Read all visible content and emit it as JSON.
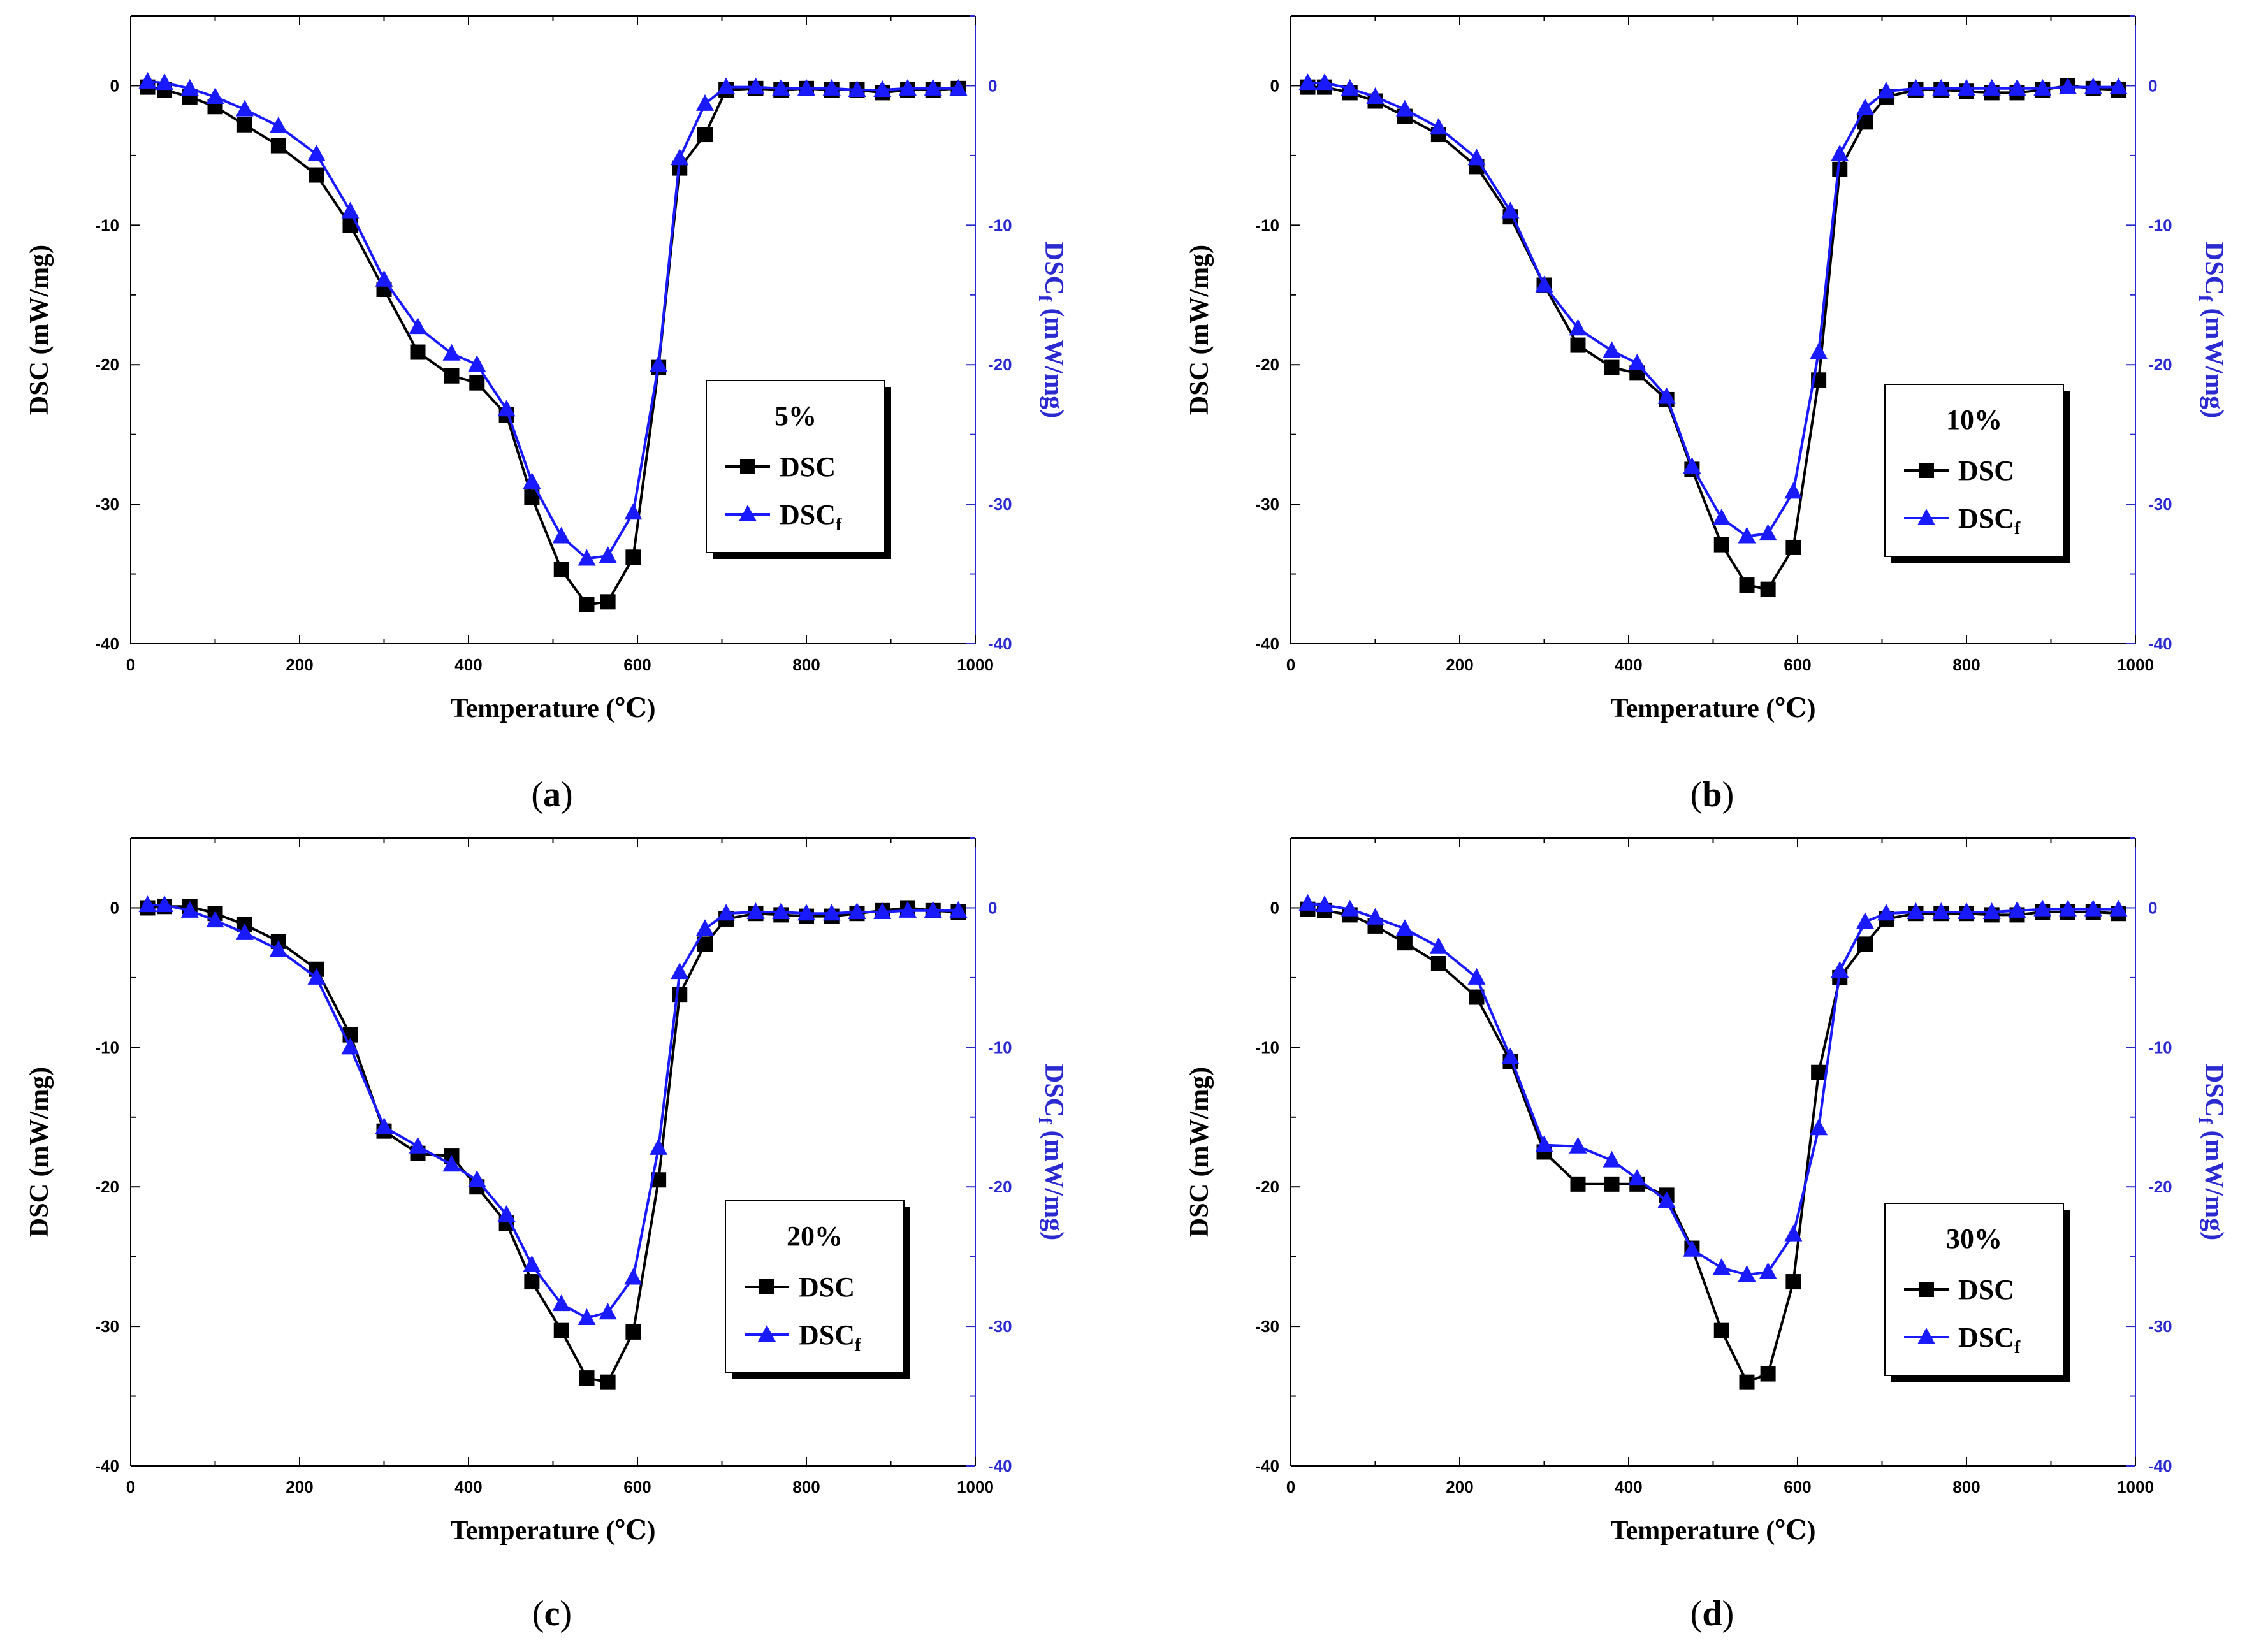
{
  "figure": {
    "panels": [
      "a",
      "b",
      "c",
      "d"
    ]
  },
  "colors": {
    "dsc": "#000000",
    "dscf": "#1a1aff",
    "axis_right": "#2a2ad0"
  },
  "chart_data": [
    {
      "type": "line",
      "panel": "a",
      "caption": {
        "open": "(",
        "letter": "a",
        "close": ")"
      },
      "legend_title": "5%",
      "legend_dsc": "DSC",
      "legend_dscf_main": "DSC",
      "legend_dscf_sub": "f",
      "xlabel": "Temperature (℃)",
      "ylabel": "DSC (mW/mg)",
      "ylabel_right_main": "DSC",
      "ylabel_right_sub": "f",
      "ylabel_right_rest": " (mW/mg)",
      "xlim": [
        0,
        1000
      ],
      "ylim": [
        -40,
        5
      ],
      "xticks": [
        "0",
        "200",
        "400",
        "600",
        "800",
        "1000"
      ],
      "yticks": [
        "0",
        "-10",
        "-20",
        "-30",
        "-40"
      ],
      "series": [
        {
          "name": "DSC",
          "marker": "square",
          "x": [
            20,
            40,
            70,
            100,
            135,
            175,
            220,
            260,
            300,
            340,
            380,
            410,
            445,
            475,
            510,
            540,
            565,
            595,
            625,
            650,
            680,
            705,
            740,
            770,
            800,
            830,
            860,
            890,
            920,
            950,
            980
          ],
          "y": [
            -0.1,
            -0.3,
            -0.8,
            -1.5,
            -2.8,
            -4.3,
            -6.4,
            -10.0,
            -14.6,
            -19.1,
            -20.8,
            -21.3,
            -23.6,
            -29.5,
            -34.7,
            -37.2,
            -37.0,
            -33.8,
            -20.2,
            -5.9,
            -3.5,
            -0.3,
            -0.2,
            -0.3,
            -0.2,
            -0.3,
            -0.3,
            -0.5,
            -0.3,
            -0.3,
            -0.2
          ]
        },
        {
          "name": "DSCf",
          "marker": "triangle",
          "x": [
            20,
            40,
            70,
            100,
            135,
            175,
            220,
            260,
            300,
            340,
            380,
            410,
            445,
            475,
            510,
            540,
            565,
            595,
            625,
            650,
            680,
            705,
            740,
            770,
            800,
            830,
            860,
            890,
            920,
            950,
            980
          ],
          "y": [
            0.3,
            0.2,
            -0.2,
            -0.8,
            -1.7,
            -2.9,
            -4.9,
            -9.0,
            -13.9,
            -17.3,
            -19.2,
            -20.0,
            -23.2,
            -28.4,
            -32.3,
            -33.9,
            -33.7,
            -30.6,
            -20.0,
            -5.2,
            -1.3,
            -0.1,
            -0.1,
            -0.2,
            -0.2,
            -0.2,
            -0.3,
            -0.3,
            -0.2,
            -0.2,
            -0.2
          ]
        }
      ]
    },
    {
      "type": "line",
      "panel": "b",
      "caption": {
        "open": "(",
        "letter": "b",
        "close": ")"
      },
      "legend_title": "10%",
      "legend_dsc": "DSC",
      "legend_dscf_main": "DSC",
      "legend_dscf_sub": "f",
      "xlabel": "Temperature (℃)",
      "ylabel": "DSC (mW/mg)",
      "ylabel_right_main": "DSC",
      "ylabel_right_sub": "f",
      "ylabel_right_rest": " (mW/mg)",
      "xlim": [
        0,
        1000
      ],
      "ylim": [
        -40,
        5
      ],
      "xticks": [
        "0",
        "200",
        "400",
        "600",
        "800",
        "1000"
      ],
      "yticks": [
        "0",
        "-10",
        "-20",
        "-30",
        "-40"
      ],
      "series": [
        {
          "name": "DSC",
          "marker": "square",
          "x": [
            20,
            40,
            70,
            100,
            135,
            175,
            220,
            260,
            300,
            340,
            380,
            410,
            445,
            475,
            510,
            540,
            565,
            595,
            625,
            650,
            680,
            705,
            740,
            770,
            800,
            830,
            860,
            890,
            920,
            950,
            980
          ],
          "y": [
            -0.1,
            -0.1,
            -0.5,
            -1.1,
            -2.2,
            -3.5,
            -5.8,
            -9.4,
            -14.3,
            -18.6,
            -20.2,
            -20.6,
            -22.5,
            -27.5,
            -32.9,
            -35.8,
            -36.1,
            -33.1,
            -21.1,
            -6.0,
            -2.6,
            -0.8,
            -0.3,
            -0.3,
            -0.4,
            -0.5,
            -0.5,
            -0.3,
            0.0,
            -0.2,
            -0.3
          ]
        },
        {
          "name": "DSCf",
          "marker": "triangle",
          "x": [
            20,
            40,
            70,
            100,
            135,
            175,
            220,
            260,
            300,
            340,
            380,
            410,
            445,
            475,
            510,
            540,
            565,
            595,
            625,
            650,
            680,
            705,
            740,
            770,
            800,
            830,
            860,
            890,
            920,
            950,
            980
          ],
          "y": [
            0.2,
            0.2,
            -0.2,
            -0.8,
            -1.7,
            -3.0,
            -5.2,
            -9.0,
            -14.3,
            -17.4,
            -19.0,
            -19.9,
            -22.3,
            -27.3,
            -31.0,
            -32.3,
            -32.1,
            -29.1,
            -19.1,
            -4.9,
            -1.6,
            -0.4,
            -0.2,
            -0.2,
            -0.2,
            -0.2,
            -0.2,
            -0.2,
            -0.1,
            -0.1,
            -0.1
          ]
        }
      ]
    },
    {
      "type": "line",
      "panel": "c",
      "caption": {
        "open": "(",
        "letter": "c",
        "close": ")"
      },
      "legend_title": "20%",
      "legend_dsc": "DSC",
      "legend_dscf_main": "DSC",
      "legend_dscf_sub": "f",
      "xlabel": "Temperature (℃)",
      "ylabel": "DSC (mW/mg)",
      "ylabel_right_main": "DSC",
      "ylabel_right_sub": "f",
      "ylabel_right_rest": " (mW/mg)",
      "xlim": [
        0,
        1000
      ],
      "ylim": [
        -40,
        5
      ],
      "xticks": [
        "0",
        "200",
        "400",
        "600",
        "800",
        "1000"
      ],
      "yticks": [
        "0",
        "-10",
        "-20",
        "-30",
        "-40"
      ],
      "series": [
        {
          "name": "DSC",
          "marker": "square",
          "x": [
            20,
            40,
            70,
            100,
            135,
            175,
            220,
            260,
            300,
            340,
            380,
            410,
            445,
            475,
            510,
            540,
            565,
            595,
            625,
            650,
            680,
            705,
            740,
            770,
            800,
            830,
            860,
            890,
            920,
            950,
            980
          ],
          "y": [
            0.0,
            0.1,
            0.1,
            -0.4,
            -1.2,
            -2.4,
            -4.4,
            -9.1,
            -16.0,
            -17.6,
            -17.8,
            -20.0,
            -22.6,
            -26.8,
            -30.3,
            -33.7,
            -34.0,
            -30.4,
            -19.5,
            -6.2,
            -2.6,
            -0.8,
            -0.4,
            -0.5,
            -0.6,
            -0.6,
            -0.4,
            -0.2,
            0.0,
            -0.2,
            -0.3
          ]
        },
        {
          "name": "DSCf",
          "marker": "triangle",
          "x": [
            20,
            40,
            70,
            100,
            135,
            175,
            220,
            260,
            300,
            340,
            380,
            410,
            445,
            475,
            510,
            540,
            565,
            595,
            625,
            650,
            680,
            705,
            740,
            770,
            800,
            830,
            860,
            890,
            920,
            950,
            980
          ],
          "y": [
            0.2,
            0.2,
            -0.2,
            -0.9,
            -1.8,
            -3.0,
            -5.0,
            -10.0,
            -15.7,
            -17.1,
            -18.4,
            -19.5,
            -22.0,
            -25.6,
            -28.4,
            -29.4,
            -29.0,
            -26.5,
            -17.2,
            -4.6,
            -1.5,
            -0.4,
            -0.3,
            -0.3,
            -0.4,
            -0.4,
            -0.3,
            -0.3,
            -0.2,
            -0.2,
            -0.2
          ]
        }
      ]
    },
    {
      "type": "line",
      "panel": "d",
      "caption": {
        "open": "(",
        "letter": "d",
        "close": ")"
      },
      "legend_title": "30%",
      "legend_dsc": "DSC",
      "legend_dscf_main": "DSC",
      "legend_dscf_sub": "f",
      "xlabel": "Temperature (℃)",
      "ylabel": "DSC (mW/mg)",
      "ylabel_right_main": "DSC",
      "ylabel_right_sub": "f",
      "ylabel_right_rest": " (mW/mg)",
      "xlim": [
        0,
        1000
      ],
      "ylim": [
        -40,
        5
      ],
      "xticks": [
        "0",
        "200",
        "400",
        "600",
        "800",
        "1000"
      ],
      "yticks": [
        "0",
        "-10",
        "-20",
        "-30",
        "-40"
      ],
      "series": [
        {
          "name": "DSC",
          "marker": "square",
          "x": [
            20,
            40,
            70,
            100,
            135,
            175,
            220,
            260,
            300,
            340,
            380,
            410,
            445,
            475,
            510,
            540,
            565,
            595,
            625,
            650,
            680,
            705,
            740,
            770,
            800,
            830,
            860,
            890,
            920,
            950,
            980
          ],
          "y": [
            -0.1,
            -0.2,
            -0.5,
            -1.3,
            -2.5,
            -4.0,
            -6.4,
            -11.0,
            -17.5,
            -19.8,
            -19.8,
            -19.8,
            -20.6,
            -24.4,
            -30.3,
            -34.0,
            -33.4,
            -26.8,
            -11.8,
            -5.0,
            -2.6,
            -0.8,
            -0.4,
            -0.4,
            -0.4,
            -0.5,
            -0.5,
            -0.3,
            -0.3,
            -0.3,
            -0.4
          ]
        },
        {
          "name": "DSCf",
          "marker": "triangle",
          "x": [
            20,
            40,
            70,
            100,
            135,
            175,
            220,
            260,
            300,
            340,
            380,
            410,
            445,
            475,
            510,
            540,
            565,
            595,
            625,
            650,
            680,
            705,
            740,
            770,
            800,
            830,
            860,
            890,
            920,
            950,
            980
          ],
          "y": [
            0.3,
            0.2,
            -0.1,
            -0.7,
            -1.5,
            -2.8,
            -5.0,
            -10.7,
            -17.0,
            -17.1,
            -18.1,
            -19.4,
            -21.0,
            -24.5,
            -25.8,
            -26.3,
            -26.1,
            -23.4,
            -15.8,
            -4.5,
            -1.0,
            -0.4,
            -0.3,
            -0.3,
            -0.3,
            -0.3,
            -0.2,
            -0.1,
            -0.1,
            -0.1,
            -0.1
          ]
        }
      ]
    }
  ]
}
